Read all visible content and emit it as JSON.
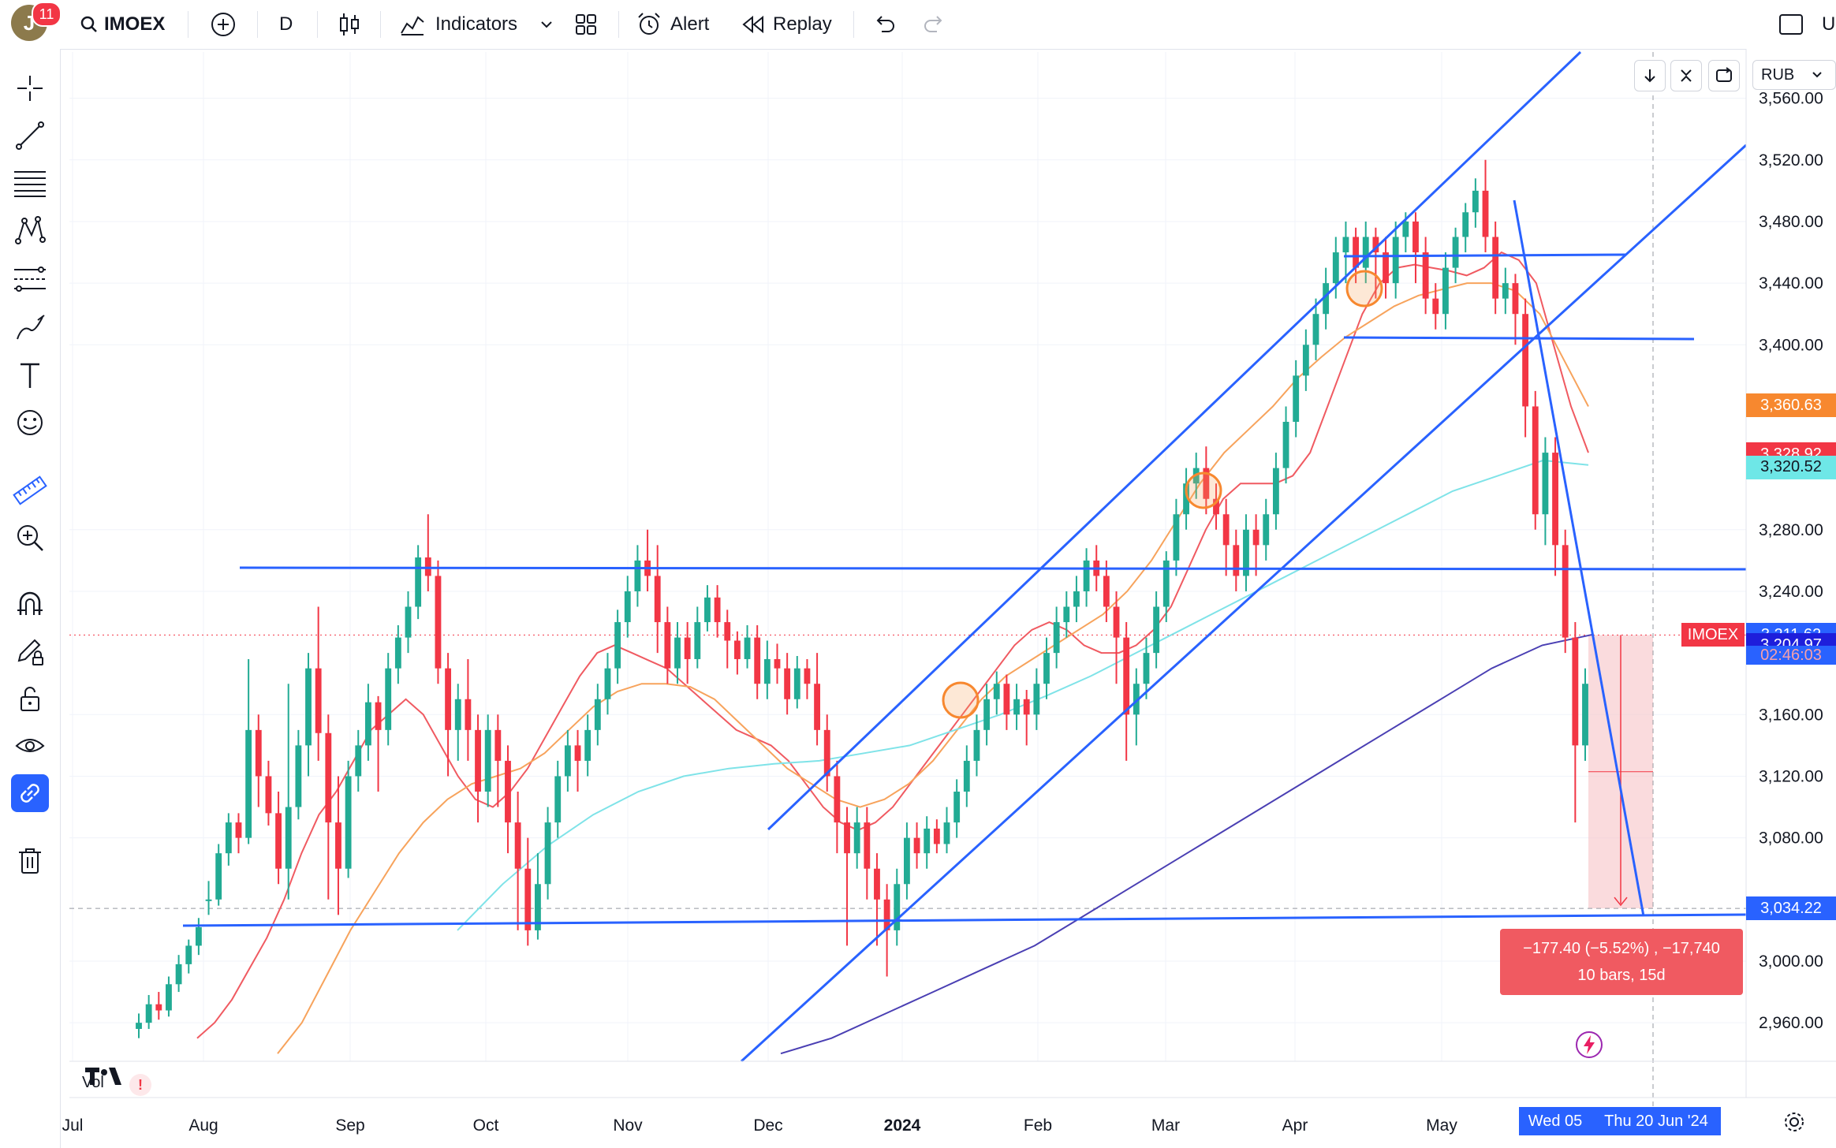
{
  "toolbar": {
    "avatar_letter": "J",
    "notifications": "11",
    "symbol": "IMOEX",
    "interval": "D",
    "indicators_label": "Indicators",
    "alert_label": "Alert",
    "replay_label": "Replay",
    "right_label": "U"
  },
  "currency": "RUB",
  "chart_data": {
    "type": "candlestick",
    "symbol": "IMOEX",
    "interval": "D",
    "currency": "RUB",
    "x_ticks": [
      "Jul",
      "Aug",
      "Sep",
      "Oct",
      "Nov",
      "Dec",
      "2024",
      "Feb",
      "Mar",
      "Apr",
      "May"
    ],
    "y_ticks": [
      3560,
      3520,
      3480,
      3440,
      3400,
      3280,
      3240,
      3160,
      3120,
      3080,
      3000,
      2960
    ],
    "y_tick_labels": [
      "3,560.00",
      "3,520.00",
      "3,480.00",
      "3,440.00",
      "3,400.00",
      "3,280.00",
      "3,240.00",
      "3,160.00",
      "3,120.00",
      "3,080.00",
      "3,000.00",
      "2,960.00"
    ],
    "ylim": [
      2935,
      3590
    ],
    "price_tags": [
      {
        "label": "3,360.63",
        "value": 3360.63,
        "color": "#f7882f"
      },
      {
        "label": "3,328.92",
        "value": 3328.92,
        "color": "#f23645"
      },
      {
        "label": "3,320.52",
        "value": 3320.52,
        "color": "#6ee7e7"
      },
      {
        "label": "3,211.62",
        "value": 3211.62,
        "color": "#2962ff"
      },
      {
        "label": "3,204.97",
        "value": 3204.97,
        "color": "#1e1edb"
      },
      {
        "label": "3,034.22",
        "value": 3034.22,
        "color": "#2962ff"
      }
    ],
    "symbol_tag": "IMOEX",
    "countdown": "02:46:03",
    "measure": {
      "line1": "−177.40 (−5.52%) , −17,740",
      "line2": "10 bars, 15d",
      "from": 3211.62,
      "to": 3034.22
    },
    "crosshair_dates": [
      "Wed 05",
      "Thu 20 Jun '24"
    ],
    "volume_label": "Vol",
    "candles": [
      [
        2956,
        2960,
        2950,
        2966
      ],
      [
        2960,
        2972,
        2956,
        2978
      ],
      [
        2972,
        2968,
        2962,
        2980
      ],
      [
        2968,
        2985,
        2964,
        2990
      ],
      [
        2985,
        2998,
        2980,
        3004
      ],
      [
        2998,
        3010,
        2992,
        3014
      ],
      [
        3010,
        3022,
        3004,
        3028
      ],
      [
        3040,
        3040,
        3030,
        3052
      ],
      [
        3040,
        3070,
        3036,
        3076
      ],
      [
        3070,
        3090,
        3062,
        3096
      ],
      [
        3090,
        3080,
        3070,
        3096
      ],
      [
        3080,
        3150,
        3076,
        3196
      ],
      [
        3150,
        3120,
        3100,
        3160
      ],
      [
        3120,
        3096,
        3088,
        3130
      ],
      [
        3096,
        3060,
        3050,
        3110
      ],
      [
        3060,
        3100,
        3040,
        3180
      ],
      [
        3100,
        3140,
        3092,
        3150
      ],
      [
        3140,
        3190,
        3120,
        3200
      ],
      [
        3190,
        3148,
        3130,
        3230
      ],
      [
        3148,
        3090,
        3040,
        3160
      ],
      [
        3090,
        3060,
        3030,
        3120
      ],
      [
        3060,
        3120,
        3054,
        3130
      ],
      [
        3120,
        3140,
        3110,
        3150
      ],
      [
        3140,
        3168,
        3130,
        3180
      ],
      [
        3168,
        3150,
        3110,
        3172
      ],
      [
        3150,
        3190,
        3140,
        3200
      ],
      [
        3190,
        3210,
        3180,
        3218
      ],
      [
        3210,
        3230,
        3200,
        3240
      ],
      [
        3230,
        3262,
        3222,
        3270
      ],
      [
        3262,
        3250,
        3240,
        3290
      ],
      [
        3250,
        3190,
        3180,
        3260
      ],
      [
        3190,
        3150,
        3120,
        3200
      ],
      [
        3150,
        3170,
        3130,
        3180
      ],
      [
        3170,
        3150,
        3130,
        3196
      ],
      [
        3150,
        3110,
        3090,
        3160
      ],
      [
        3110,
        3150,
        3100,
        3160
      ],
      [
        3150,
        3130,
        3100,
        3160
      ],
      [
        3130,
        3090,
        3070,
        3140
      ],
      [
        3090,
        3060,
        3020,
        3110
      ],
      [
        3060,
        3020,
        3010,
        3080
      ],
      [
        3020,
        3050,
        3014,
        3070
      ],
      [
        3050,
        3090,
        3040,
        3100
      ],
      [
        3090,
        3120,
        3080,
        3130
      ],
      [
        3120,
        3140,
        3110,
        3150
      ],
      [
        3140,
        3130,
        3110,
        3150
      ],
      [
        3130,
        3150,
        3120,
        3160
      ],
      [
        3150,
        3170,
        3140,
        3180
      ],
      [
        3170,
        3190,
        3160,
        3200
      ],
      [
        3190,
        3220,
        3180,
        3228
      ],
      [
        3220,
        3240,
        3210,
        3250
      ],
      [
        3240,
        3260,
        3230,
        3270
      ],
      [
        3260,
        3250,
        3240,
        3280
      ],
      [
        3250,
        3220,
        3200,
        3270
      ],
      [
        3220,
        3190,
        3180,
        3230
      ],
      [
        3190,
        3210,
        3180,
        3220
      ],
      [
        3210,
        3196,
        3180,
        3220
      ],
      [
        3196,
        3220,
        3190,
        3230
      ],
      [
        3220,
        3236,
        3214,
        3244
      ],
      [
        3236,
        3220,
        3210,
        3244
      ],
      [
        3220,
        3208,
        3190,
        3228
      ],
      [
        3208,
        3196,
        3186,
        3214
      ],
      [
        3196,
        3210,
        3190,
        3218
      ],
      [
        3210,
        3180,
        3170,
        3218
      ],
      [
        3180,
        3196,
        3170,
        3208
      ],
      [
        3196,
        3190,
        3180,
        3206
      ],
      [
        3190,
        3170,
        3160,
        3200
      ],
      [
        3170,
        3190,
        3164,
        3198
      ],
      [
        3190,
        3180,
        3170,
        3196
      ],
      [
        3180,
        3150,
        3140,
        3200
      ],
      [
        3150,
        3120,
        3110,
        3160
      ],
      [
        3120,
        3090,
        3070,
        3130
      ],
      [
        3090,
        3070,
        3010,
        3100
      ],
      [
        3070,
        3090,
        3060,
        3100
      ],
      [
        3090,
        3060,
        3040,
        3100
      ],
      [
        3060,
        3040,
        3010,
        3070
      ],
      [
        3040,
        3020,
        2990,
        3050
      ],
      [
        3020,
        3050,
        3010,
        3060
      ],
      [
        3050,
        3080,
        3040,
        3090
      ],
      [
        3080,
        3070,
        3060,
        3090
      ],
      [
        3070,
        3086,
        3060,
        3094
      ],
      [
        3086,
        3076,
        3070,
        3092
      ],
      [
        3076,
        3090,
        3070,
        3100
      ],
      [
        3090,
        3110,
        3080,
        3118
      ],
      [
        3110,
        3130,
        3100,
        3140
      ],
      [
        3130,
        3150,
        3120,
        3160
      ],
      [
        3150,
        3170,
        3140,
        3180
      ],
      [
        3170,
        3180,
        3160,
        3188
      ],
      [
        3180,
        3160,
        3150,
        3186
      ],
      [
        3160,
        3170,
        3150,
        3180
      ],
      [
        3170,
        3160,
        3140,
        3176
      ],
      [
        3160,
        3180,
        3150,
        3190
      ],
      [
        3180,
        3200,
        3170,
        3210
      ],
      [
        3200,
        3220,
        3190,
        3230
      ],
      [
        3220,
        3230,
        3210,
        3240
      ],
      [
        3230,
        3240,
        3220,
        3250
      ],
      [
        3240,
        3260,
        3230,
        3268
      ],
      [
        3260,
        3250,
        3240,
        3270
      ],
      [
        3250,
        3230,
        3220,
        3260
      ],
      [
        3230,
        3210,
        3180,
        3240
      ],
      [
        3210,
        3160,
        3130,
        3220
      ],
      [
        3160,
        3180,
        3140,
        3190
      ],
      [
        3180,
        3200,
        3170,
        3210
      ],
      [
        3200,
        3230,
        3190,
        3240
      ],
      [
        3230,
        3260,
        3220,
        3266
      ],
      [
        3260,
        3290,
        3250,
        3300
      ],
      [
        3290,
        3310,
        3280,
        3320
      ],
      [
        3310,
        3320,
        3300,
        3330
      ],
      [
        3320,
        3300,
        3290,
        3334
      ],
      [
        3300,
        3290,
        3280,
        3310
      ],
      [
        3290,
        3270,
        3250,
        3300
      ],
      [
        3270,
        3250,
        3240,
        3280
      ],
      [
        3250,
        3280,
        3240,
        3290
      ],
      [
        3280,
        3270,
        3250,
        3290
      ],
      [
        3270,
        3290,
        3260,
        3300
      ],
      [
        3290,
        3320,
        3280,
        3330
      ],
      [
        3320,
        3350,
        3310,
        3360
      ],
      [
        3350,
        3380,
        3340,
        3390
      ],
      [
        3380,
        3400,
        3370,
        3410
      ],
      [
        3400,
        3420,
        3390,
        3430
      ],
      [
        3420,
        3440,
        3410,
        3450
      ],
      [
        3440,
        3460,
        3430,
        3470
      ],
      [
        3460,
        3470,
        3440,
        3480
      ],
      [
        3470,
        3450,
        3440,
        3476
      ],
      [
        3450,
        3470,
        3440,
        3480
      ],
      [
        3470,
        3460,
        3430,
        3476
      ],
      [
        3460,
        3440,
        3430,
        3470
      ],
      [
        3440,
        3470,
        3430,
        3480
      ],
      [
        3470,
        3480,
        3460,
        3486
      ],
      [
        3480,
        3460,
        3440,
        3486
      ],
      [
        3460,
        3430,
        3420,
        3470
      ],
      [
        3430,
        3420,
        3410,
        3440
      ],
      [
        3420,
        3450,
        3410,
        3460
      ],
      [
        3450,
        3470,
        3440,
        3476
      ],
      [
        3470,
        3486,
        3460,
        3492
      ],
      [
        3486,
        3500,
        3476,
        3508
      ],
      [
        3500,
        3470,
        3460,
        3520
      ],
      [
        3470,
        3430,
        3420,
        3480
      ],
      [
        3430,
        3440,
        3420,
        3450
      ],
      [
        3440,
        3420,
        3400,
        3446
      ],
      [
        3420,
        3360,
        3340,
        3430
      ],
      [
        3360,
        3290,
        3280,
        3370
      ],
      [
        3290,
        3330,
        3270,
        3340
      ],
      [
        3330,
        3270,
        3250,
        3340
      ],
      [
        3270,
        3210,
        3200,
        3280
      ],
      [
        3210,
        3140,
        3090,
        3220
      ],
      [
        3140,
        3180,
        3130,
        3190
      ]
    ],
    "ema_fast": [
      2950,
      2960,
      2975,
      2995,
      3015,
      3040,
      3070,
      3095,
      3110,
      3130,
      3150,
      3160,
      3170,
      3160,
      3140,
      3120,
      3105,
      3100,
      3110,
      3125,
      3145,
      3165,
      3185,
      3200,
      3205,
      3200,
      3195,
      3190,
      3180,
      3170,
      3160,
      3150,
      3145,
      3140,
      3130,
      3115,
      3100,
      3090,
      3085,
      3090,
      3100,
      3115,
      3130,
      3145,
      3160,
      3175,
      3190,
      3205,
      3215,
      3220,
      3215,
      3205,
      3200,
      3200,
      3205,
      3215,
      3230,
      3255,
      3280,
      3300,
      3310,
      3310,
      3310,
      3315,
      3330,
      3360,
      3390,
      3420,
      3440,
      3450,
      3452,
      3450,
      3448,
      3445,
      3450,
      3460,
      3455,
      3440,
      3400,
      3360,
      3330
    ],
    "ema_mid": [
      2940,
      2960,
      2990,
      3020,
      3045,
      3070,
      3090,
      3105,
      3115,
      3120,
      3125,
      3135,
      3150,
      3165,
      3175,
      3180,
      3180,
      3178,
      3170,
      3155,
      3140,
      3125,
      3115,
      3105,
      3100,
      3105,
      3115,
      3130,
      3150,
      3170,
      3185,
      3195,
      3205,
      3215,
      3225,
      3240,
      3260,
      3285,
      3310,
      3330,
      3345,
      3360,
      3378,
      3392,
      3405,
      3415,
      3425,
      3432,
      3436,
      3440,
      3440,
      3435,
      3420,
      3390,
      3360
    ],
    "ema_slow": [
      3020,
      3050,
      3075,
      3095,
      3110,
      3120,
      3125,
      3128,
      3130,
      3135,
      3140,
      3150,
      3160,
      3172,
      3185,
      3200,
      3215,
      3230,
      3245,
      3260,
      3275,
      3290,
      3305,
      3315,
      3325,
      3322
    ],
    "sma_long": [
      2940,
      2950,
      2965,
      2980,
      2995,
      3010,
      3030,
      3050,
      3070,
      3090,
      3110,
      3130,
      3150,
      3170,
      3190,
      3205,
      3212
    ]
  }
}
